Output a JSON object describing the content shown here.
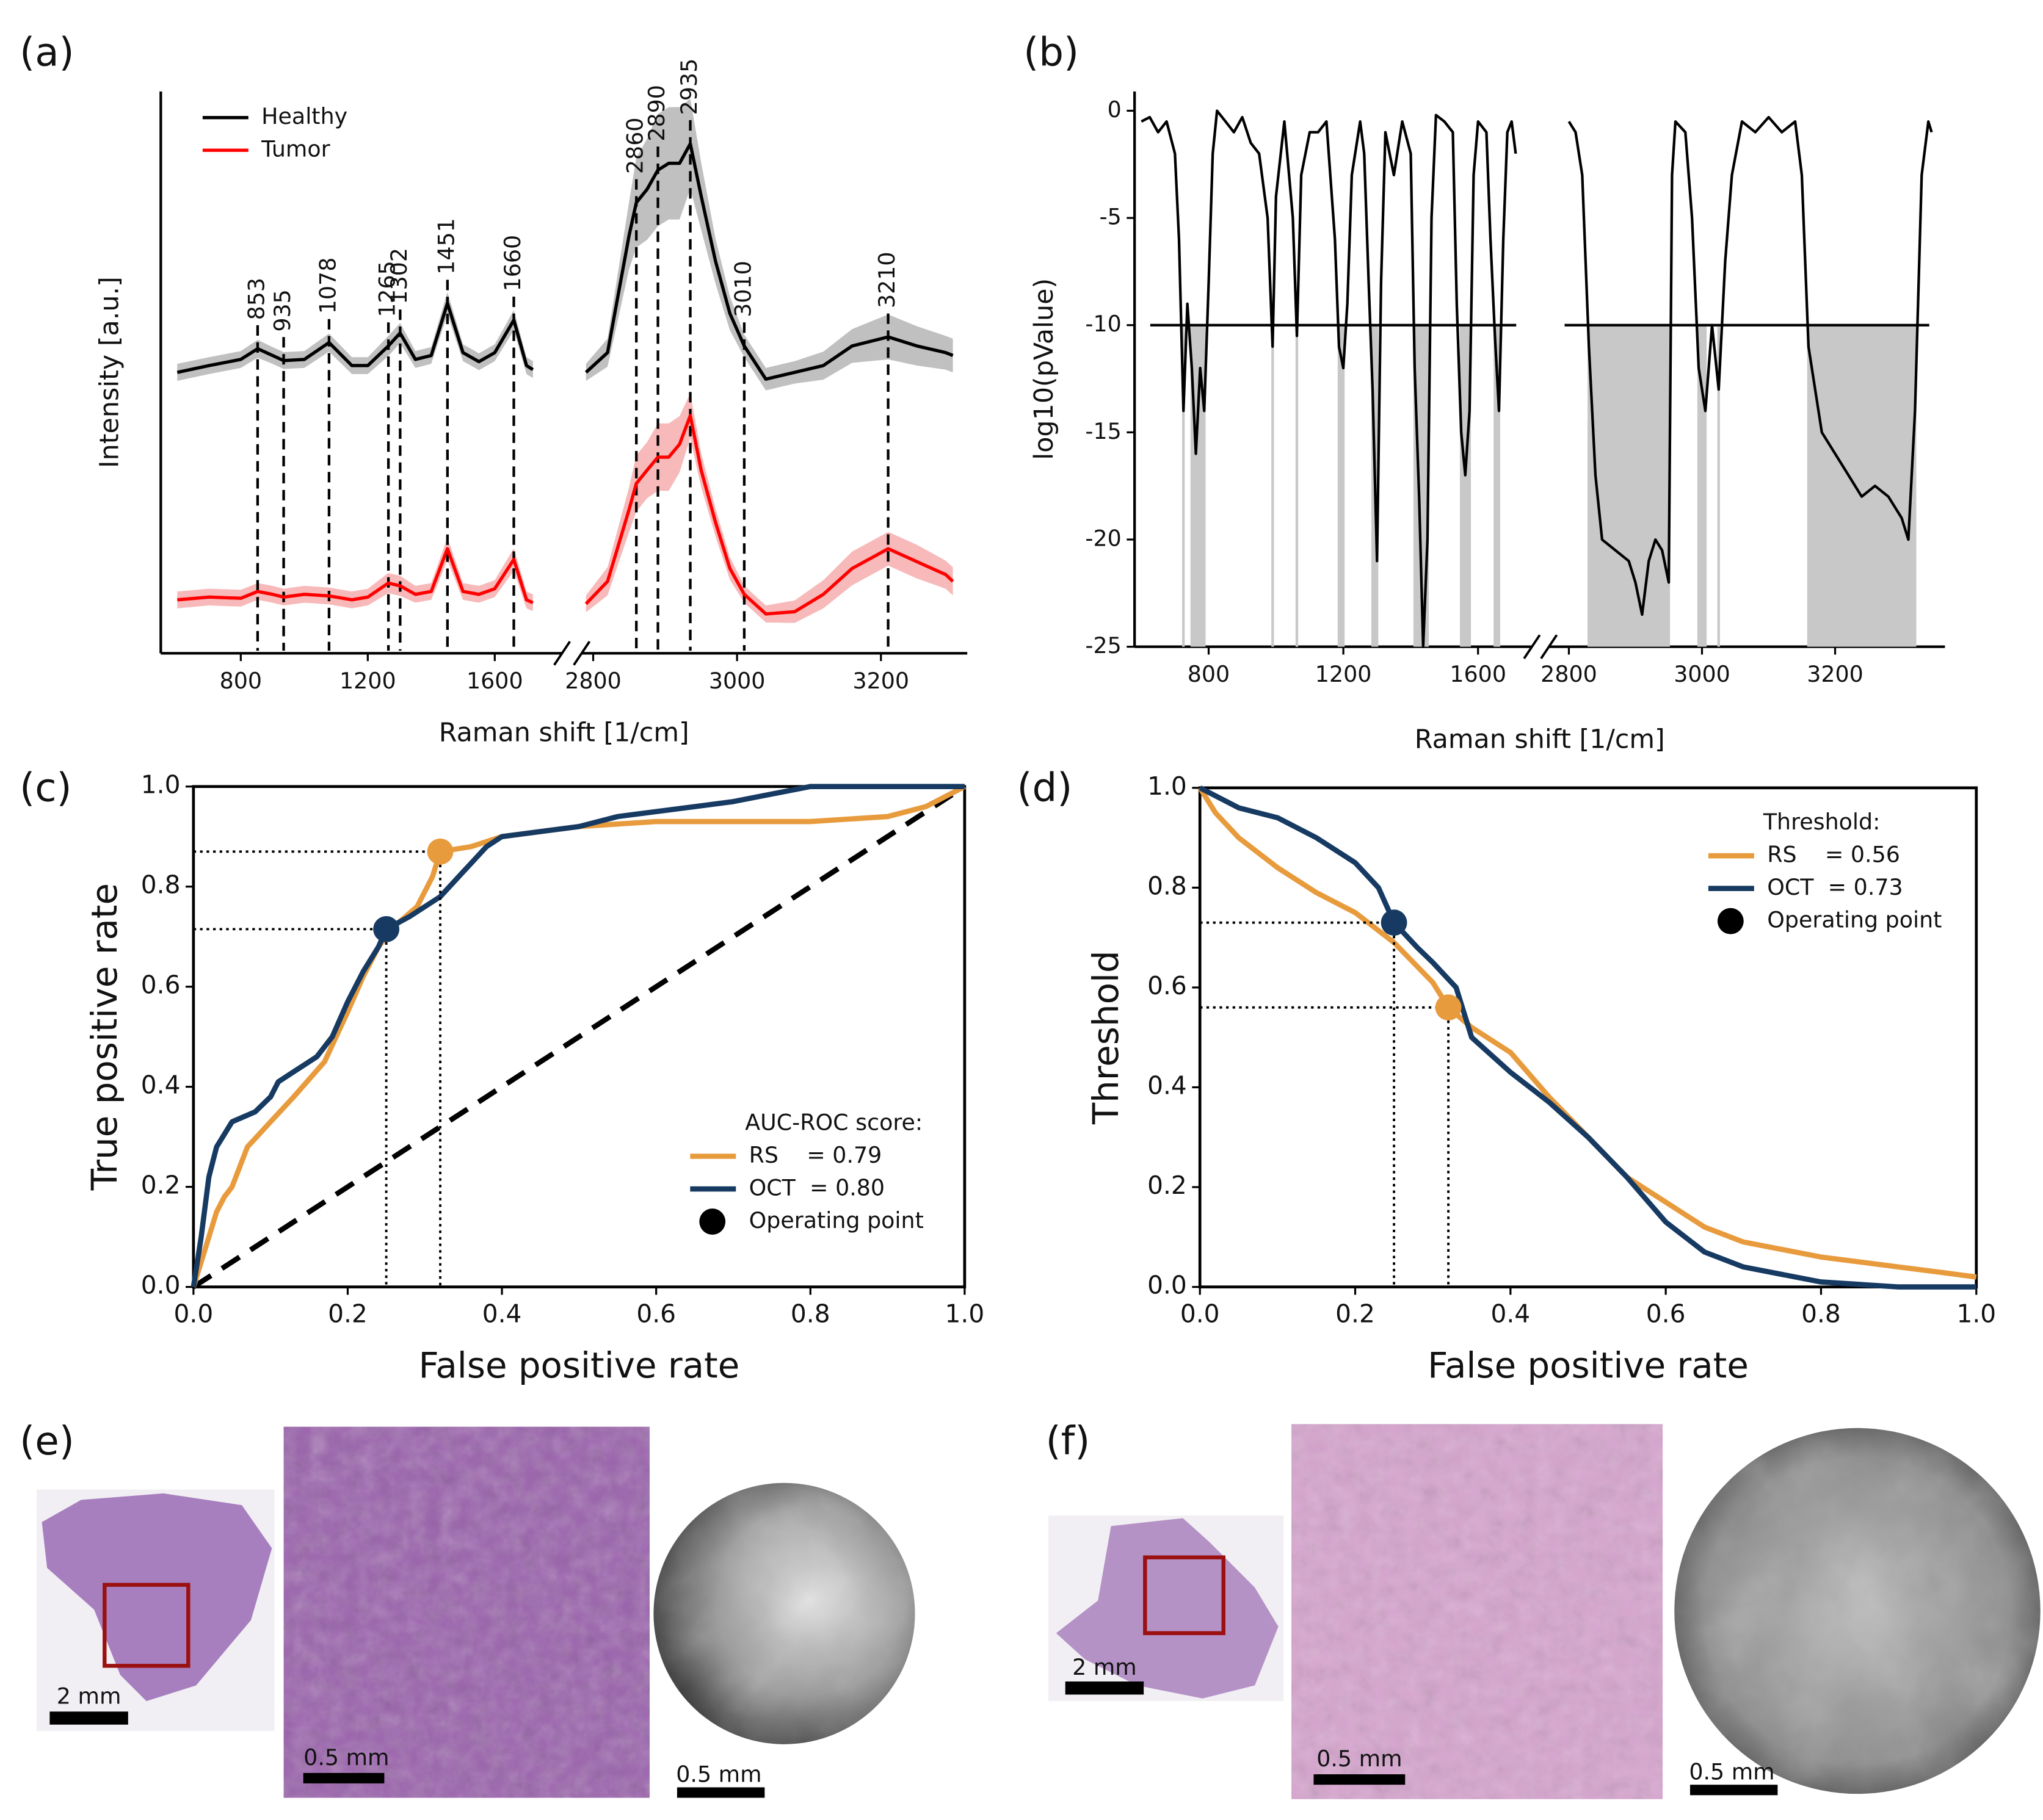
{
  "chart_data": [
    {
      "type": "line",
      "panel_label": "(a)",
      "ylabel": "Intensity [a.u.]",
      "xlabel": "Raman shift [1/cm]",
      "ylim": [
        0,
        100
      ],
      "legend": "upper left",
      "xsegments": [
        {
          "xlim": [
            548,
            1812
          ],
          "xticks": [
            800,
            1200,
            1600
          ]
        },
        {
          "xlim": [
            2784,
            3320
          ],
          "xticks": [
            2800,
            3000,
            3200
          ]
        }
      ],
      "x": [
        600,
        700,
        800,
        853,
        900,
        935,
        1000,
        1078,
        1150,
        1200,
        1265,
        1302,
        1350,
        1400,
        1451,
        1500,
        1550,
        1600,
        1660,
        1700,
        1720,
        2790,
        2820,
        2850,
        2860,
        2875,
        2890,
        2905,
        2920,
        2935,
        2950,
        2970,
        2990,
        3010,
        3040,
        3080,
        3120,
        3160,
        3210,
        3250,
        3290,
        3300
      ],
      "series": [
        {
          "name": "Healthy",
          "color": "#000000",
          "band_color": "#8c8c8c",
          "values": [
            50,
            51.2,
            52.3,
            54.2,
            53,
            52.1,
            52.3,
            55.3,
            51.2,
            51.2,
            54.7,
            57,
            52.3,
            53,
            62.3,
            53.5,
            51.9,
            53.5,
            59.3,
            51.2,
            50.5,
            50,
            53.5,
            74.4,
            80.2,
            82.6,
            86,
            87.2,
            87.2,
            90.7,
            81.4,
            69.8,
            60.5,
            54.7,
            48.8,
            50,
            51.2,
            54.7,
            56.3,
            54.7,
            53.5,
            53
          ],
          "std": [
            1.5,
            1.5,
            1.5,
            1.6,
            1.5,
            1.5,
            1.5,
            1.6,
            1.5,
            1.5,
            1.8,
            1.8,
            1.5,
            1.5,
            2,
            1.5,
            1.5,
            1.5,
            1.8,
            1.5,
            1.5,
            1.5,
            2.5,
            6,
            8,
            9,
            10,
            10,
            10,
            8,
            6,
            4,
            3,
            2,
            2,
            2,
            2.5,
            3,
            4,
            3.5,
            3,
            3
          ]
        },
        {
          "name": "Tumor",
          "color": "#ff0000",
          "band_color": "#f08080",
          "values": [
            9.5,
            10,
            9.8,
            11,
            10.5,
            10,
            10.5,
            10.2,
            9.5,
            10,
            12.5,
            12,
            10.5,
            11,
            18.6,
            11,
            10.5,
            11.5,
            16.7,
            9.5,
            9,
            8.8,
            12.8,
            25.6,
            30.2,
            32.6,
            34.9,
            34.9,
            37.2,
            42.3,
            32.6,
            23.3,
            15.1,
            10.5,
            7,
            7.4,
            10.5,
            15.1,
            18.6,
            16.3,
            14,
            12.8
          ],
          "std": [
            1.5,
            1.5,
            1.5,
            1.5,
            1.5,
            1.5,
            1.5,
            1.5,
            1.5,
            1.5,
            1.8,
            1.8,
            1.5,
            1.5,
            2,
            1.5,
            1.5,
            1.5,
            2,
            1.5,
            1.5,
            1.5,
            2.5,
            4,
            5,
            5,
            6,
            6,
            5,
            4,
            3,
            2.5,
            2,
            1.5,
            1.5,
            2,
            2.5,
            3,
            3,
            3,
            2.5,
            2.5
          ]
        }
      ],
      "peaks": [
        853,
        935,
        1078,
        1265,
        1302,
        1451,
        1660,
        2860,
        2890,
        2935,
        3010,
        3210
      ]
    },
    {
      "type": "line",
      "panel_label": "(b)",
      "ylabel": "log10(pValue)",
      "xlabel": "Raman shift [1/cm]",
      "ylim": [
        -25,
        0.9
      ],
      "yticks": [
        0,
        -5,
        -10,
        -15,
        -20,
        -25
      ],
      "threshold": -10,
      "shade_color": "#c8c8c8",
      "xsegments": [
        {
          "xlim": [
            580,
            1760
          ],
          "xticks": [
            800,
            1200,
            1600
          ]
        },
        {
          "xlim": [
            2770,
            3365
          ],
          "xticks": [
            2800,
            3000,
            3200
          ]
        }
      ],
      "x": [
        600,
        625,
        650,
        675,
        700,
        712,
        725,
        737,
        750,
        762,
        775,
        787,
        800,
        812,
        825,
        850,
        875,
        900,
        925,
        950,
        975,
        990,
        1000,
        1025,
        1050,
        1062,
        1075,
        1100,
        1125,
        1150,
        1175,
        1187,
        1200,
        1212,
        1225,
        1250,
        1262,
        1275,
        1287,
        1300,
        1312,
        1325,
        1350,
        1375,
        1400,
        1412,
        1425,
        1437,
        1450,
        1462,
        1475,
        1500,
        1525,
        1537,
        1550,
        1562,
        1575,
        1587,
        1600,
        1625,
        1637,
        1650,
        1662,
        1675,
        1687,
        1700,
        1712,
        2800,
        2810,
        2820,
        2830,
        2840,
        2850,
        2870,
        2890,
        2900,
        2910,
        2920,
        2930,
        2940,
        2950,
        2955,
        2960,
        2975,
        2985,
        2995,
        3005,
        3015,
        3025,
        3035,
        3045,
        3060,
        3080,
        3100,
        3120,
        3140,
        3150,
        3160,
        3170,
        3180,
        3200,
        3220,
        3240,
        3260,
        3280,
        3300,
        3310,
        3320,
        3330,
        3340,
        3345
      ],
      "series": [
        {
          "color": "#000000",
          "values": [
            -0.5,
            -0.3,
            -1,
            -0.5,
            -2,
            -6,
            -14,
            -9,
            -12,
            -16,
            -12,
            -14,
            -8,
            -2,
            0,
            -0.5,
            -1,
            -0.3,
            -1.5,
            -2,
            -5,
            -11,
            -4,
            -0.5,
            -5,
            -10.5,
            -3,
            -1,
            -1,
            -0.5,
            -6,
            -11,
            -12,
            -9,
            -3,
            -0.5,
            -2,
            -8,
            -13,
            -21,
            -8,
            -1,
            -3,
            -0.5,
            -2,
            -12,
            -18,
            -25,
            -20,
            -5,
            -0.2,
            -0.5,
            -1,
            -9,
            -15,
            -17,
            -14,
            -3,
            -0.5,
            -1,
            -6,
            -10.5,
            -14,
            -6,
            -1,
            -0.5,
            -2,
            -0.5,
            -1,
            -3,
            -11,
            -17,
            -20,
            -20.5,
            -21,
            -22,
            -23.5,
            -21,
            -20,
            -20.5,
            -22,
            -3,
            -0.5,
            -1,
            -5,
            -12,
            -14,
            -10,
            -13,
            -7,
            -3,
            -0.5,
            -1,
            -0.3,
            -1,
            -0.5,
            -3,
            -11,
            -13,
            -15,
            -16,
            -17,
            -18,
            -17.5,
            -18,
            -19,
            -20,
            -14,
            -3,
            -0.5,
            -1
          ]
        }
      ]
    },
    {
      "type": "line",
      "panel_label": "(c)",
      "ylabel": "True positive rate",
      "xlabel": "False positive rate",
      "xlim": [
        0,
        1
      ],
      "ylim": [
        0,
        1
      ],
      "xticks": [
        {
          "value": 0,
          "label": "0.0"
        },
        0.2,
        0.4,
        0.6,
        0.8,
        {
          "value": 1,
          "label": "1.0"
        }
      ],
      "yticks": [
        {
          "value": 0,
          "label": "0.0"
        },
        0.2,
        0.4,
        0.6,
        0.8,
        {
          "value": 1,
          "label": "1.0"
        }
      ],
      "diagonal": true,
      "legend": "lower right",
      "legend_title": "AUC-ROC score:",
      "marker_legend": "Operating point",
      "series": [
        {
          "name": "RS    = 0.79",
          "color": "#e89b3c",
          "operating_point": {
            "x": 0.32,
            "y": 0.87
          },
          "x": [
            0,
            0.01,
            0.02,
            0.03,
            0.04,
            0.05,
            0.07,
            0.1,
            0.13,
            0.17,
            0.2,
            0.22,
            0.24,
            0.26,
            0.29,
            0.31,
            0.32,
            0.36,
            0.4,
            0.5,
            0.6,
            0.7,
            0.8,
            0.9,
            0.95,
            1
          ],
          "values": [
            0,
            0.05,
            0.1,
            0.15,
            0.18,
            0.2,
            0.28,
            0.33,
            0.38,
            0.45,
            0.55,
            0.62,
            0.68,
            0.72,
            0.76,
            0.82,
            0.87,
            0.88,
            0.9,
            0.92,
            0.93,
            0.93,
            0.93,
            0.94,
            0.96,
            1
          ]
        },
        {
          "name": "OCT  = 0.80",
          "color": "#163a62",
          "operating_point": {
            "x": 0.25,
            "y": 0.715
          },
          "x": [
            0,
            0.01,
            0.02,
            0.03,
            0.05,
            0.08,
            0.1,
            0.11,
            0.13,
            0.16,
            0.18,
            0.2,
            0.22,
            0.24,
            0.25,
            0.28,
            0.32,
            0.35,
            0.38,
            0.4,
            0.5,
            0.55,
            0.6,
            0.7,
            0.8,
            1
          ],
          "values": [
            0,
            0.1,
            0.22,
            0.28,
            0.33,
            0.35,
            0.38,
            0.41,
            0.43,
            0.46,
            0.5,
            0.57,
            0.63,
            0.68,
            0.715,
            0.74,
            0.78,
            0.83,
            0.88,
            0.9,
            0.92,
            0.94,
            0.95,
            0.97,
            1,
            1
          ]
        }
      ]
    },
    {
      "type": "line",
      "panel_label": "(d)",
      "ylabel": "Threshold",
      "xlabel": "False positive rate",
      "xlim": [
        0,
        1
      ],
      "ylim": [
        0,
        1
      ],
      "xticks": [
        {
          "value": 0,
          "label": "0.0"
        },
        0.2,
        0.4,
        0.6,
        0.8,
        {
          "value": 1,
          "label": "1.0"
        }
      ],
      "yticks": [
        {
          "value": 0,
          "label": "0.0"
        },
        0.2,
        0.4,
        0.6,
        0.8,
        {
          "value": 1,
          "label": "1.0"
        }
      ],
      "legend": "upper right",
      "legend_title": "Threshold:",
      "marker_legend": "Operating point",
      "series": [
        {
          "name": "RS    = 0.56",
          "color": "#e89b3c",
          "operating_point": {
            "x": 0.32,
            "y": 0.56
          },
          "x": [
            0,
            0.02,
            0.05,
            0.1,
            0.15,
            0.2,
            0.25,
            0.3,
            0.32,
            0.35,
            0.4,
            0.45,
            0.5,
            0.55,
            0.6,
            0.65,
            0.7,
            0.8,
            0.9,
            0.95,
            1
          ],
          "values": [
            1,
            0.95,
            0.9,
            0.84,
            0.79,
            0.75,
            0.69,
            0.61,
            0.56,
            0.52,
            0.47,
            0.38,
            0.3,
            0.22,
            0.17,
            0.12,
            0.09,
            0.06,
            0.04,
            0.03,
            0.02
          ]
        },
        {
          "name": "OCT  = 0.73",
          "color": "#163a62",
          "operating_point": {
            "x": 0.25,
            "y": 0.73
          },
          "x": [
            0,
            0.05,
            0.1,
            0.15,
            0.2,
            0.23,
            0.25,
            0.28,
            0.3,
            0.33,
            0.35,
            0.4,
            0.45,
            0.5,
            0.55,
            0.6,
            0.65,
            0.7,
            0.8,
            0.9,
            1
          ],
          "values": [
            1,
            0.96,
            0.94,
            0.9,
            0.85,
            0.8,
            0.73,
            0.68,
            0.65,
            0.6,
            0.5,
            0.43,
            0.37,
            0.3,
            0.22,
            0.13,
            0.07,
            0.04,
            0.01,
            0,
            0
          ]
        }
      ]
    }
  ],
  "images": [
    {
      "label": "(e)",
      "scale_bars": [
        "2 mm",
        "0.5 mm",
        "0.5 mm"
      ]
    },
    {
      "label": "(f)",
      "scale_bars": [
        "2 mm",
        "0.5 mm",
        "0.5 mm"
      ]
    }
  ]
}
